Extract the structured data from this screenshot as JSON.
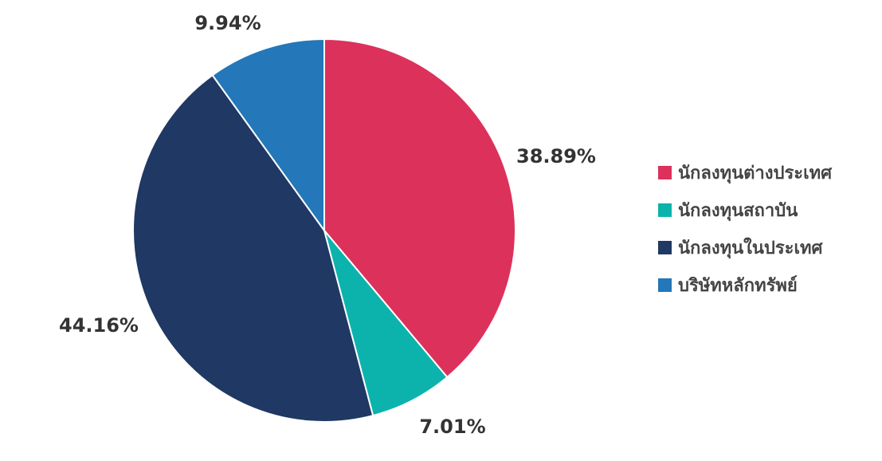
{
  "chart_data": {
    "type": "pie",
    "start_angle_deg": 0,
    "direction": "clockwise",
    "slices": [
      {
        "label": "นักลงทุนต่างประเทศ",
        "value": 38.89,
        "value_label": "38.89%",
        "color": "#dc315b"
      },
      {
        "label": "นักลงทุนสถาบัน",
        "value": 7.01,
        "value_label": "7.01%",
        "color": "#0cb3ad"
      },
      {
        "label": "นักลงทุนในประเทศ",
        "value": 44.16,
        "value_label": "44.16%",
        "color": "#1f3864"
      },
      {
        "label": "บริษัทหลักทรัพย์",
        "value": 9.94,
        "value_label": "9.94%",
        "color": "#2477b8"
      }
    ],
    "legend_position": "right"
  }
}
